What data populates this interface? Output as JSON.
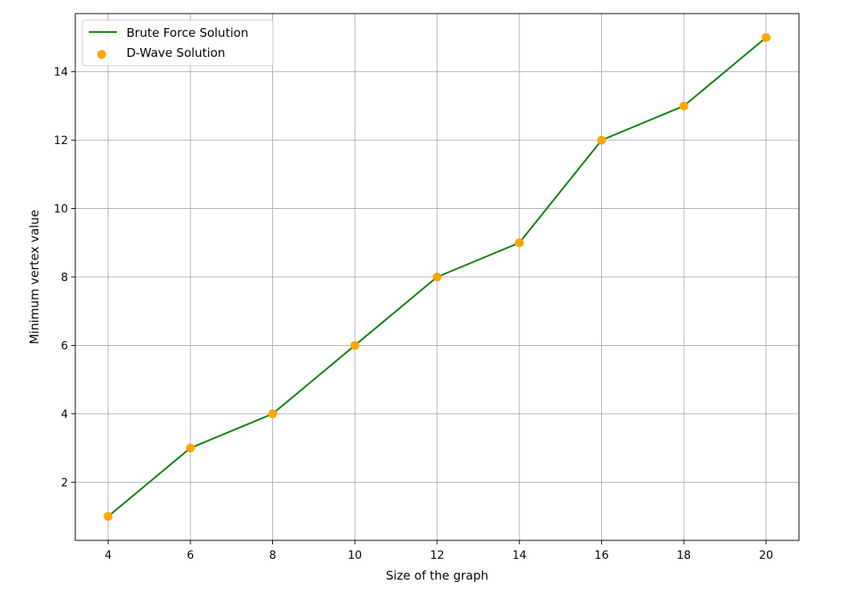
{
  "chart_data": {
    "type": "line",
    "title": "",
    "xlabel": "Size of the graph",
    "ylabel": "Minimum vertex value",
    "x": [
      4,
      6,
      8,
      10,
      12,
      14,
      16,
      18,
      20
    ],
    "series": [
      {
        "name": "Brute Force Solution",
        "kind": "line",
        "color": "#008000",
        "values": [
          1,
          3,
          4,
          6,
          8,
          9,
          12,
          13,
          15
        ]
      },
      {
        "name": "D-Wave Solution",
        "kind": "scatter",
        "color": "#FFA500",
        "values": [
          1,
          3,
          4,
          6,
          8,
          9,
          12,
          13,
          15
        ]
      }
    ],
    "xlim": [
      3.2,
      20.8
    ],
    "ylim": [
      0.3,
      15.7
    ],
    "xticks": [
      4,
      6,
      8,
      10,
      12,
      14,
      16,
      18,
      20
    ],
    "yticks": [
      2,
      4,
      6,
      8,
      10,
      12,
      14
    ],
    "grid": true,
    "legend_position": "top-left"
  }
}
